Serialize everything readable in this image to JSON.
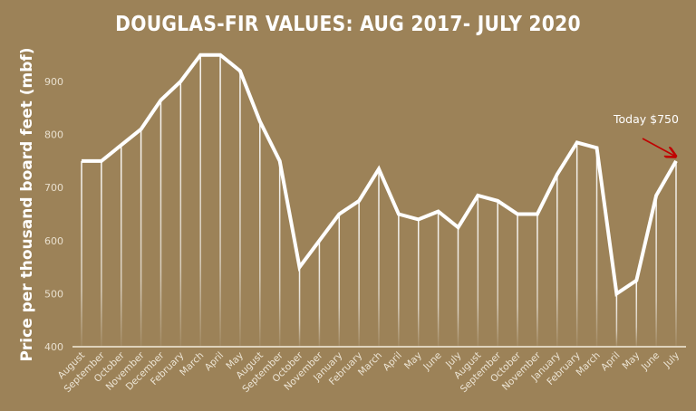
{
  "chart_data": {
    "type": "line",
    "title": "DOUGLAS-FIR VALUES: AUG 2017- JULY 2020",
    "xlabel": "",
    "ylabel": "Price per thousand board feet (mbf)",
    "ylim": [
      400,
      950
    ],
    "yticks": [
      400,
      500,
      600,
      700,
      800,
      900
    ],
    "grid": false,
    "legend": "none",
    "categories": [
      "August",
      "September",
      "October",
      "November",
      "December",
      "February",
      "March",
      "April",
      "May",
      "August",
      "September",
      "October",
      "November",
      "January",
      "February",
      "March",
      "April",
      "May",
      "June",
      "July",
      "August",
      "September",
      "October",
      "November",
      "January",
      "February",
      "March",
      "April",
      "May",
      "June",
      "July"
    ],
    "series": [
      {
        "name": "Douglas-fir price",
        "values": [
          750,
          750,
          780,
          810,
          865,
          900,
          950,
          950,
          920,
          825,
          750,
          550,
          600,
          650,
          675,
          735,
          650,
          640,
          655,
          625,
          685,
          675,
          650,
          650,
          725,
          785,
          775,
          500,
          525,
          685,
          750
        ]
      }
    ],
    "annotations": [
      {
        "text": "Today $750",
        "target_index": 30,
        "arrow_color": "#c00000"
      }
    ]
  },
  "colors": {
    "background": "#9c8258",
    "line": "#ffffff",
    "arrow": "#c00000"
  }
}
